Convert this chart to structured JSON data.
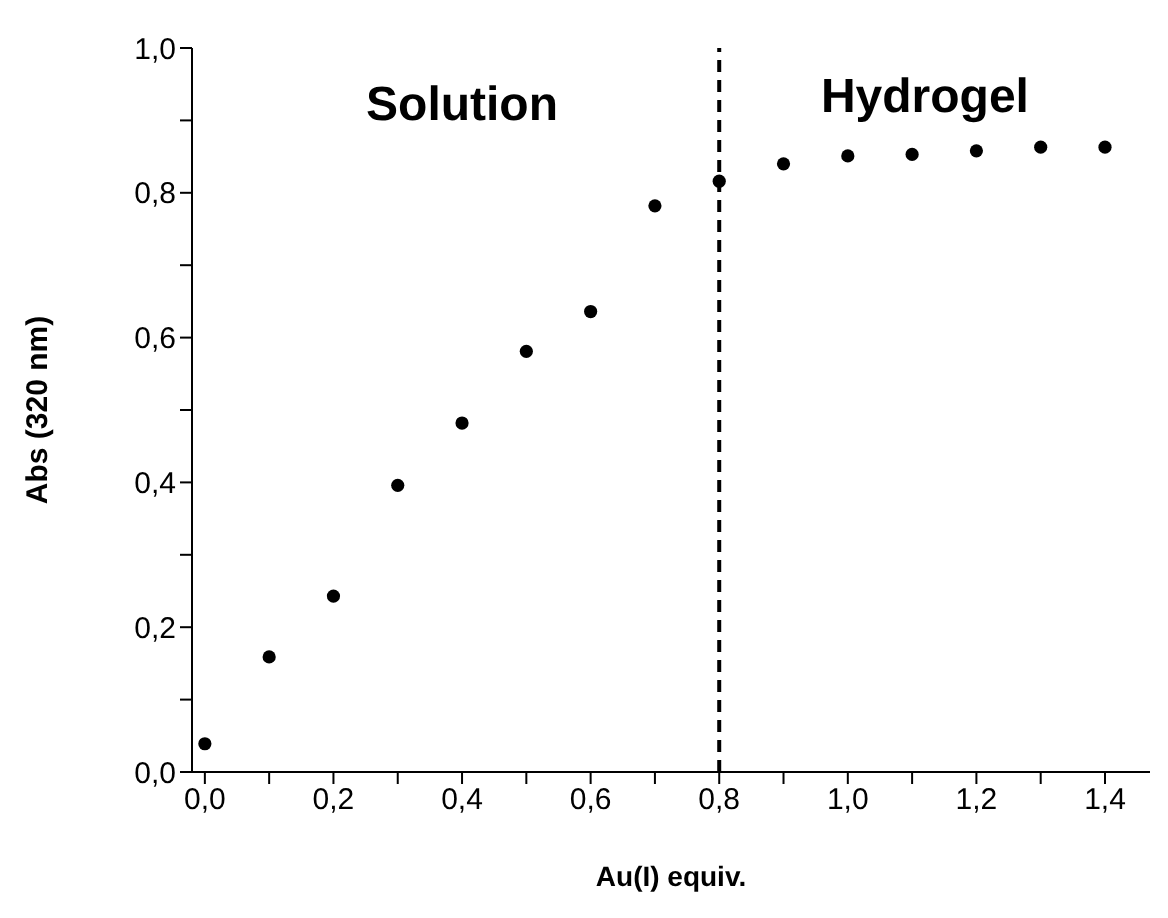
{
  "chart_data": {
    "type": "scatter",
    "xlabel": "Au(I) equiv.",
    "ylabel": "Abs (320 nm)",
    "annotations": [
      "Solution",
      "Hydrogel"
    ],
    "x": [
      0,
      0.1,
      0.2,
      0.3,
      0.4,
      0.5,
      0.6,
      0.7,
      0.8,
      0.9,
      1.0,
      1.1,
      1.2,
      1.3,
      1.4
    ],
    "series": [
      {
        "color": "#000000",
        "values": [
          0.039,
          0.159,
          0.243,
          0.396,
          0.482,
          0.581,
          0.636,
          0.782,
          0.816,
          0.84,
          0.851,
          0.853,
          0.858,
          0.863,
          0.863
        ]
      }
    ],
    "xlim": [
      -0.02,
      1.47
    ],
    "xticks": [
      {
        "value": 0,
        "label": "0,0"
      },
      {
        "value": 0.1,
        "label": null
      },
      {
        "value": 0.2,
        "label": "0,2"
      },
      {
        "value": 0.3,
        "label": null
      },
      {
        "value": 0.4,
        "label": "0,4"
      },
      {
        "value": 0.5,
        "label": null
      },
      {
        "value": 0.6,
        "label": "0,6"
      },
      {
        "value": 0.7,
        "label": null
      },
      {
        "value": 0.8,
        "label": "0,8"
      },
      {
        "value": 0.9,
        "label": null
      },
      {
        "value": 1.0,
        "label": "1,0"
      },
      {
        "value": 1.1,
        "label": null
      },
      {
        "value": 1.2,
        "label": "1,2"
      },
      {
        "value": 1.3,
        "label": null
      },
      {
        "value": 1.4,
        "label": "1,4"
      }
    ],
    "ylim": [
      0,
      1
    ],
    "yticks": [
      {
        "value": 0,
        "label": "0,0"
      },
      {
        "value": 0.1,
        "label": null
      },
      {
        "value": 0.2,
        "label": "0,2"
      },
      {
        "value": 0.3,
        "label": null
      },
      {
        "value": 0.4,
        "label": "0,4"
      },
      {
        "value": 0.5,
        "label": null
      },
      {
        "value": 0.6,
        "label": "0,6"
      },
      {
        "value": 0.7,
        "label": null
      },
      {
        "value": 0.8,
        "label": "0,8"
      },
      {
        "value": 0.9,
        "label": null
      },
      {
        "value": 1.0,
        "label": "1,0"
      }
    ],
    "ref_lines": [
      {
        "axis": "x",
        "value": 0.8,
        "color": "#000000",
        "line_style": "dashed"
      }
    ],
    "grid": false,
    "legend": false,
    "marker": "circle"
  }
}
